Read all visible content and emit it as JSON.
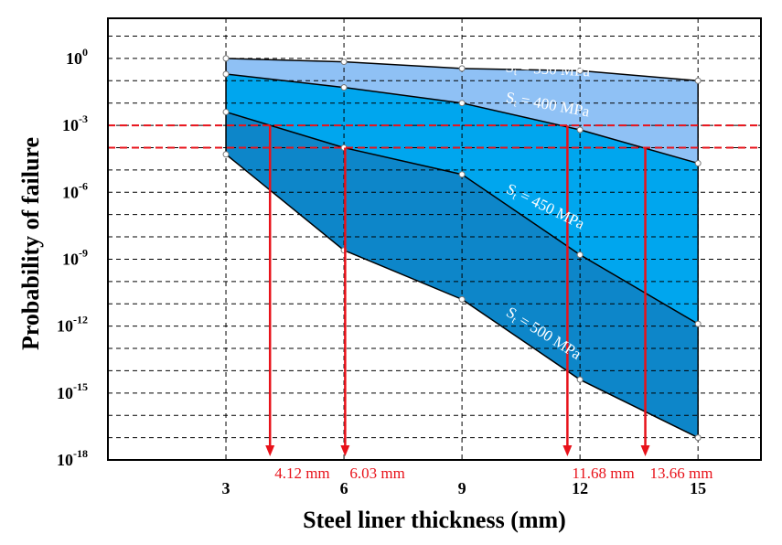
{
  "chart_data": {
    "type": "area",
    "xlabel": "Steel liner thickness (mm)",
    "ylabel": "Probability of failure",
    "x_ticks": [
      3,
      6,
      9,
      12,
      15
    ],
    "xlim": [
      0,
      16.6
    ],
    "ylim_log10": [
      -18,
      1.8
    ],
    "y_tick_exponents": [
      0,
      -3,
      -6,
      -9,
      -12,
      -15,
      -18
    ],
    "y_scale": "log",
    "grid": "dashed",
    "series": [
      {
        "name": "St = 350 MPa",
        "x": [
          3,
          6,
          9,
          12,
          15
        ],
        "log10_y": [
          0.0,
          -0.15,
          -0.45,
          -0.55,
          -1.0
        ],
        "fill": "#8fc1f5"
      },
      {
        "name": "St = 400 MPa",
        "x": [
          3,
          6,
          9,
          12,
          15
        ],
        "log10_y": [
          -0.7,
          -1.3,
          -2.0,
          -3.2,
          -4.7
        ],
        "fill": "#00a6ee"
      },
      {
        "name": "St = 450 MPa",
        "x": [
          3,
          6,
          9,
          12,
          15
        ],
        "log10_y": [
          -2.4,
          -4.0,
          -5.2,
          -8.8,
          -11.9
        ],
        "fill": "#0d86c9"
      },
      {
        "name": "St = 500 MPa",
        "x": [
          3,
          6,
          9,
          12,
          15
        ],
        "log10_y": [
          -4.3,
          -8.6,
          -10.8,
          -14.4,
          -17.0
        ],
        "fill": "#0d86c9"
      }
    ],
    "thresholds_log10": [
      -3,
      -4
    ],
    "annotations": [
      {
        "text": "4.12 mm",
        "x": 4.12
      },
      {
        "text": "6.03 mm",
        "x": 6.03
      },
      {
        "text": "11.68 mm",
        "x": 11.68
      },
      {
        "text": "13.66 mm",
        "x": 13.66
      }
    ],
    "colors": {
      "threshold": "#e8121a",
      "grid": "#000000",
      "outline": "#000000"
    }
  }
}
